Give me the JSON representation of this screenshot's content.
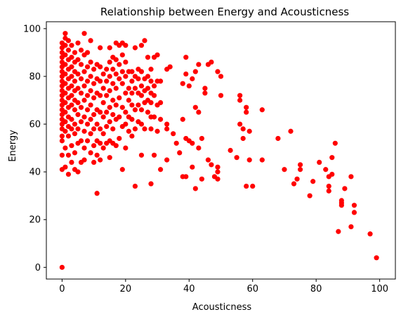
{
  "chart_data": {
    "type": "scatter",
    "title": "Relationship between Energy and Acousticness",
    "xlabel": "Acousticness",
    "ylabel": "Energy",
    "xlim": [
      -4.95,
      104.95
    ],
    "ylim": [
      -4.9,
      102.9
    ],
    "xticks": [
      0,
      20,
      40,
      60,
      80,
      100
    ],
    "yticks": [
      0,
      20,
      40,
      60,
      80,
      100
    ],
    "grid": false,
    "legend": false,
    "marker_color": "#ff0000",
    "series": [
      {
        "points": [
          [
            0,
            0
          ],
          [
            0,
            41
          ],
          [
            0,
            47
          ],
          [
            0,
            53
          ],
          [
            0,
            55
          ],
          [
            0,
            58
          ],
          [
            0,
            60
          ],
          [
            0,
            62
          ],
          [
            0,
            64
          ],
          [
            0,
            66
          ],
          [
            0,
            68
          ],
          [
            0,
            70
          ],
          [
            0,
            72
          ],
          [
            0,
            74
          ],
          [
            0,
            76
          ],
          [
            0,
            78
          ],
          [
            0,
            80
          ],
          [
            0,
            82
          ],
          [
            0,
            84
          ],
          [
            0,
            86
          ],
          [
            0,
            88
          ],
          [
            0,
            90
          ],
          [
            0,
            92
          ],
          [
            0,
            94
          ],
          [
            1,
            42
          ],
          [
            1,
            50
          ],
          [
            1,
            57
          ],
          [
            1,
            61
          ],
          [
            1,
            65
          ],
          [
            1,
            69
          ],
          [
            1,
            73
          ],
          [
            1,
            77
          ],
          [
            1,
            81
          ],
          [
            1,
            85
          ],
          [
            1,
            89
          ],
          [
            1,
            93
          ],
          [
            1,
            96
          ],
          [
            1,
            98
          ],
          [
            2,
            39
          ],
          [
            2,
            47
          ],
          [
            2,
            55
          ],
          [
            2,
            59
          ],
          [
            2,
            63
          ],
          [
            2,
            67
          ],
          [
            2,
            71
          ],
          [
            2,
            75
          ],
          [
            2,
            79
          ],
          [
            2,
            83
          ],
          [
            2,
            87
          ],
          [
            2,
            91
          ],
          [
            2,
            95
          ],
          [
            3,
            44
          ],
          [
            3,
            51
          ],
          [
            3,
            58
          ],
          [
            3,
            62
          ],
          [
            3,
            68
          ],
          [
            3,
            72
          ],
          [
            3,
            76
          ],
          [
            3,
            80
          ],
          [
            3,
            84
          ],
          [
            3,
            88
          ],
          [
            3,
            93
          ],
          [
            4,
            41
          ],
          [
            4,
            48
          ],
          [
            4,
            56
          ],
          [
            4,
            60
          ],
          [
            4,
            66
          ],
          [
            4,
            70
          ],
          [
            4,
            74
          ],
          [
            4,
            78
          ],
          [
            4,
            82
          ],
          [
            4,
            86
          ],
          [
            4,
            90
          ],
          [
            5,
            40
          ],
          [
            5,
            52
          ],
          [
            5,
            58
          ],
          [
            5,
            64
          ],
          [
            5,
            69
          ],
          [
            5,
            75
          ],
          [
            5,
            81
          ],
          [
            5,
            87
          ],
          [
            5,
            94
          ],
          [
            6,
            44
          ],
          [
            6,
            53
          ],
          [
            6,
            61
          ],
          [
            6,
            67
          ],
          [
            6,
            73
          ],
          [
            6,
            79
          ],
          [
            6,
            85
          ],
          [
            6,
            91
          ],
          [
            7,
            45
          ],
          [
            7,
            50
          ],
          [
            7,
            57
          ],
          [
            7,
            63
          ],
          [
            7,
            70
          ],
          [
            7,
            76
          ],
          [
            7,
            82
          ],
          [
            7,
            89
          ],
          [
            7,
            98
          ],
          [
            8,
            53
          ],
          [
            8,
            60
          ],
          [
            8,
            66
          ],
          [
            8,
            72
          ],
          [
            8,
            78
          ],
          [
            8,
            84
          ],
          [
            8,
            90
          ],
          [
            9,
            48
          ],
          [
            9,
            56
          ],
          [
            9,
            62
          ],
          [
            9,
            68
          ],
          [
            9,
            74
          ],
          [
            9,
            80
          ],
          [
            9,
            86
          ],
          [
            9,
            95
          ],
          [
            10,
            44
          ],
          [
            10,
            51
          ],
          [
            10,
            58
          ],
          [
            10,
            64
          ],
          [
            10,
            71
          ],
          [
            10,
            77
          ],
          [
            10,
            83
          ],
          [
            11,
            31
          ],
          [
            11,
            47
          ],
          [
            11,
            53
          ],
          [
            11,
            60
          ],
          [
            11,
            66
          ],
          [
            11,
            73
          ],
          [
            11,
            79
          ],
          [
            11,
            85
          ],
          [
            12,
            45
          ],
          [
            12,
            52
          ],
          [
            12,
            58
          ],
          [
            12,
            65
          ],
          [
            12,
            72
          ],
          [
            12,
            78
          ],
          [
            12,
            84
          ],
          [
            12,
            92
          ],
          [
            13,
            50
          ],
          [
            13,
            56
          ],
          [
            13,
            63
          ],
          [
            13,
            69
          ],
          [
            13,
            75
          ],
          [
            13,
            81
          ],
          [
            14,
            52
          ],
          [
            14,
            59
          ],
          [
            14,
            65
          ],
          [
            14,
            72
          ],
          [
            14,
            78
          ],
          [
            14,
            83
          ],
          [
            15,
            46
          ],
          [
            15,
            53
          ],
          [
            15,
            61
          ],
          [
            15,
            67
          ],
          [
            15,
            74
          ],
          [
            15,
            80
          ],
          [
            15,
            86
          ],
          [
            15,
            92
          ],
          [
            16,
            52
          ],
          [
            16,
            58
          ],
          [
            16,
            64
          ],
          [
            16,
            70
          ],
          [
            16,
            77
          ],
          [
            16,
            83
          ],
          [
            16,
            88
          ],
          [
            17,
            51
          ],
          [
            17,
            62
          ],
          [
            17,
            68
          ],
          [
            17,
            75
          ],
          [
            17,
            81
          ],
          [
            17,
            87
          ],
          [
            17,
            94
          ],
          [
            18,
            54
          ],
          [
            18,
            63
          ],
          [
            18,
            71
          ],
          [
            18,
            79
          ],
          [
            18,
            85
          ],
          [
            18,
            93
          ],
          [
            19,
            41
          ],
          [
            19,
            59
          ],
          [
            19,
            67
          ],
          [
            19,
            77
          ],
          [
            19,
            82
          ],
          [
            19,
            89
          ],
          [
            19,
            94
          ],
          [
            20,
            50
          ],
          [
            20,
            60
          ],
          [
            20,
            65
          ],
          [
            20,
            73
          ],
          [
            20,
            80
          ],
          [
            20,
            86
          ],
          [
            20,
            93
          ],
          [
            21,
            57
          ],
          [
            21,
            63
          ],
          [
            21,
            70
          ],
          [
            21,
            75
          ],
          [
            21,
            82
          ],
          [
            22,
            55
          ],
          [
            22,
            62
          ],
          [
            22,
            68
          ],
          [
            22,
            73
          ],
          [
            22,
            78
          ],
          [
            22,
            82
          ],
          [
            23,
            34
          ],
          [
            23,
            58
          ],
          [
            23,
            66
          ],
          [
            23,
            75
          ],
          [
            23,
            80
          ],
          [
            23,
            92
          ],
          [
            24,
            61
          ],
          [
            24,
            68
          ],
          [
            24,
            73
          ],
          [
            24,
            79
          ],
          [
            24,
            83
          ],
          [
            25,
            47
          ],
          [
            25,
            60
          ],
          [
            25,
            66
          ],
          [
            25,
            72
          ],
          [
            25,
            76
          ],
          [
            25,
            82
          ],
          [
            25,
            93
          ],
          [
            26,
            58
          ],
          [
            26,
            69
          ],
          [
            26,
            74
          ],
          [
            26,
            79
          ],
          [
            26,
            95
          ],
          [
            27,
            65
          ],
          [
            27,
            70
          ],
          [
            27,
            75
          ],
          [
            27,
            80
          ],
          [
            27,
            88
          ],
          [
            28,
            35
          ],
          [
            28,
            58
          ],
          [
            28,
            63
          ],
          [
            28,
            69
          ],
          [
            28,
            73
          ],
          [
            28,
            78
          ],
          [
            28,
            83
          ],
          [
            29,
            47
          ],
          [
            29,
            63
          ],
          [
            29,
            72
          ],
          [
            29,
            76
          ],
          [
            29,
            88
          ],
          [
            30,
            57
          ],
          [
            30,
            68
          ],
          [
            30,
            78
          ],
          [
            30,
            89
          ],
          [
            31,
            41
          ],
          [
            31,
            62
          ],
          [
            31,
            69
          ],
          [
            31,
            78
          ],
          [
            33,
            45
          ],
          [
            33,
            58
          ],
          [
            33,
            60
          ],
          [
            33,
            83
          ],
          [
            34,
            84
          ],
          [
            35,
            56
          ],
          [
            36,
            52
          ],
          [
            37,
            48
          ],
          [
            38,
            38
          ],
          [
            38,
            62
          ],
          [
            38,
            77
          ],
          [
            39,
            38
          ],
          [
            39,
            54
          ],
          [
            39,
            81
          ],
          [
            39,
            88
          ],
          [
            40,
            53
          ],
          [
            40,
            76
          ],
          [
            41,
            42
          ],
          [
            41,
            52
          ],
          [
            41,
            79
          ],
          [
            42,
            33
          ],
          [
            42,
            67
          ],
          [
            42,
            82
          ],
          [
            43,
            50
          ],
          [
            43,
            65
          ],
          [
            43,
            85
          ],
          [
            44,
            37
          ],
          [
            44,
            54
          ],
          [
            45,
            73
          ],
          [
            45,
            75
          ],
          [
            46,
            45
          ],
          [
            46,
            85
          ],
          [
            47,
            43
          ],
          [
            47,
            86
          ],
          [
            48,
            38
          ],
          [
            49,
            37
          ],
          [
            49,
            40
          ],
          [
            49,
            42
          ],
          [
            49,
            82
          ],
          [
            50,
            72
          ],
          [
            50,
            80
          ],
          [
            53,
            49
          ],
          [
            55,
            46
          ],
          [
            56,
            60
          ],
          [
            56,
            70
          ],
          [
            56,
            72
          ],
          [
            57,
            54
          ],
          [
            57,
            58
          ],
          [
            58,
            34
          ],
          [
            58,
            65
          ],
          [
            58,
            67
          ],
          [
            59,
            45
          ],
          [
            59,
            57
          ],
          [
            60,
            34
          ],
          [
            63,
            45
          ],
          [
            63,
            66
          ],
          [
            68,
            54
          ],
          [
            70,
            41
          ],
          [
            72,
            57
          ],
          [
            73,
            35
          ],
          [
            74,
            37
          ],
          [
            75,
            41
          ],
          [
            75,
            43
          ],
          [
            78,
            30
          ],
          [
            79,
            36
          ],
          [
            81,
            44
          ],
          [
            83,
            41
          ],
          [
            84,
            32
          ],
          [
            84,
            34
          ],
          [
            84,
            38
          ],
          [
            85,
            39
          ],
          [
            85,
            46
          ],
          [
            86,
            52
          ],
          [
            87,
            15
          ],
          [
            88,
            26
          ],
          [
            88,
            27
          ],
          [
            88,
            28
          ],
          [
            89,
            33
          ],
          [
            91,
            17
          ],
          [
            91,
            38
          ],
          [
            92,
            23
          ],
          [
            92,
            26
          ],
          [
            97,
            14
          ],
          [
            99,
            4
          ]
        ]
      }
    ]
  }
}
